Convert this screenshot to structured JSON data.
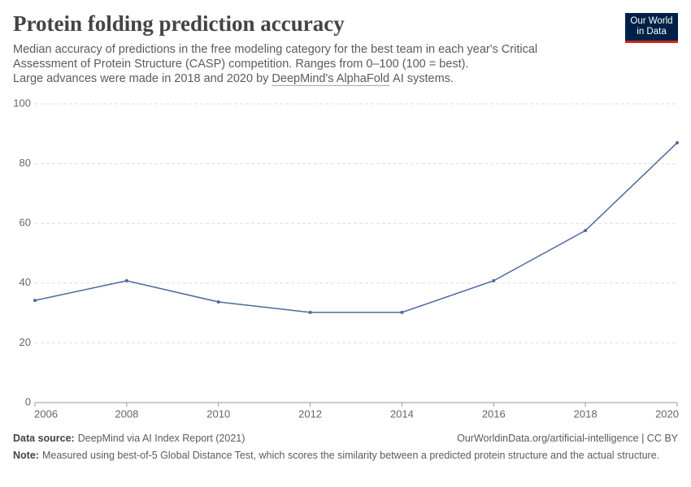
{
  "chart_data": {
    "type": "line",
    "title": "Protein folding prediction accuracy",
    "subtitle": [
      "Median accuracy of predictions in the free modeling category for the best team in each year's Critical",
      "Assessment of Protein Structure (CASP) competition. Ranges from 0–100 (100 = best).",
      "Large advances were made in 2018 and 2020 by"
    ],
    "subtitle_link": "DeepMind's AlphaFold",
    "subtitle_end": "AI systems.",
    "logo": [
      "Our World",
      "in Data"
    ],
    "x": [
      2006,
      2008,
      2010,
      2012,
      2014,
      2016,
      2018,
      2020
    ],
    "values": [
      34.2,
      40.8,
      33.7,
      30.2,
      30.2,
      40.8,
      57.6,
      87.0
    ],
    "color": "#4c6a9c",
    "xlim": [
      2006,
      2020
    ],
    "xticks": [
      2006,
      2008,
      2010,
      2012,
      2014,
      2016,
      2018,
      2020
    ],
    "ylim": [
      0,
      100
    ],
    "yticks": [
      0,
      20,
      40,
      60,
      80,
      100
    ],
    "grid": true,
    "source_label": "Data source:",
    "source": "DeepMind via AI Index Report (2021)",
    "url": "OurWorldinData.org/artificial-intelligence | CC BY",
    "note_label": "Note:",
    "note": "Measured using best-of-5 Global Distance Test, which scores the similarity between a predicted protein structure and the actual structure."
  }
}
